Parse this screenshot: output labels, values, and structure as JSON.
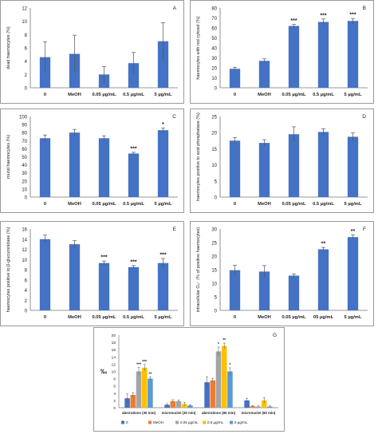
{
  "colors": {
    "bar": "#4472C4",
    "axis": "#777777",
    "frame": "#9a9a9a",
    "text": "#222222"
  },
  "chart_data": [
    {
      "panel": "A",
      "type": "bar",
      "categories": [
        "0",
        "MeOH",
        "0.05 µg/mL",
        "0.5 µg/mL",
        "5 µg/mL"
      ],
      "values": [
        4.6,
        5.1,
        2.0,
        3.7,
        7.0
      ],
      "errors": [
        2.3,
        2.8,
        1.2,
        1.6,
        2.8
      ],
      "sig": [
        "",
        "",
        "",
        "",
        ""
      ],
      "ylabel": "dead haemocytes (%)",
      "ylim": [
        0,
        12
      ],
      "yticks": [
        0,
        2,
        4,
        6,
        8,
        10,
        12
      ]
    },
    {
      "panel": "B",
      "type": "bar",
      "categories": [
        "0",
        "MeOH",
        "0.05 µg/mL",
        "0.5 µg/mL",
        "5 µg/mL"
      ],
      "values": [
        19,
        27,
        62,
        66,
        67
      ],
      "errors": [
        1.5,
        2,
        1.5,
        3,
        2.5
      ],
      "sig": [
        "",
        "",
        "***",
        "***",
        "***"
      ],
      "ylabel": "haemocytes with red cytosol (%)",
      "ylim": [
        0,
        80
      ],
      "yticks": [
        0,
        10,
        20,
        30,
        40,
        50,
        60,
        70,
        80
      ]
    },
    {
      "panel": "C",
      "type": "bar",
      "categories": [
        "0",
        "MeOH",
        "0.05 µg/mL",
        "0.5 µg/mL",
        "5 µg/mL"
      ],
      "values": [
        73,
        80,
        73,
        54,
        83
      ],
      "errors": [
        4,
        4,
        3,
        1.5,
        2.5
      ],
      "sig": [
        "",
        "",
        "",
        "***",
        "*"
      ],
      "ylabel": "round haemocytes (%)",
      "ylim": [
        0,
        100
      ],
      "yticks": [
        0,
        10,
        20,
        30,
        40,
        50,
        60,
        70,
        80,
        90,
        100
      ]
    },
    {
      "panel": "D",
      "type": "bar",
      "categories": [
        "0",
        "MeOH",
        "0.05 µg/mL",
        "0.5 µg/mL",
        "5 µg/mL"
      ],
      "values": [
        17.5,
        16.8,
        19.5,
        20.2,
        18.7
      ],
      "errors": [
        1,
        1,
        2.3,
        1,
        1.2
      ],
      "sig": [
        "",
        "",
        "",
        "",
        ""
      ],
      "ylabel": "haemocytes positive to acid phosphatase (%)",
      "ylim": [
        0,
        25
      ],
      "yticks": [
        0,
        5,
        10,
        15,
        20,
        25
      ]
    },
    {
      "panel": "E",
      "type": "bar",
      "categories": [
        "0",
        "MeOH",
        "0.05 µg/mL",
        "0.5 µg/mL",
        "5 µg/mL"
      ],
      "values": [
        14,
        13,
        9.3,
        8.5,
        9.3
      ],
      "errors": [
        0.8,
        0.7,
        0.4,
        0.3,
        0.9
      ],
      "sig": [
        "",
        "",
        "***",
        "***",
        "***"
      ],
      "ylabel": "haemocytes positive to β-glucuronidase (%)",
      "ylim": [
        0,
        16
      ],
      "yticks": [
        0,
        2,
        4,
        6,
        8,
        10,
        12,
        14,
        16
      ]
    },
    {
      "panel": "F",
      "type": "bar",
      "categories": [
        "0",
        "MeOH",
        "0.05 µg/mL",
        "05 µg/mL",
        "5 µg/mL"
      ],
      "values": [
        14.8,
        14.3,
        12.8,
        22.5,
        27
      ],
      "errors": [
        1.8,
        2.2,
        0.6,
        0.7,
        0.8
      ],
      "sig": [
        "",
        "",
        "",
        "**",
        "**"
      ],
      "ylabel": "intracellular O₂⁻ (% of positive haemocytes)",
      "ylim": [
        0,
        30
      ],
      "yticks": [
        0,
        5,
        10,
        15,
        20,
        25,
        30
      ]
    },
    {
      "panel": "G",
      "type": "bar",
      "categories": [
        "aberrations (30 min)",
        "micronuclei (30 min)",
        "aberrations (60 min)",
        "micronuclei (60 min)"
      ],
      "series": [
        {
          "name": "0",
          "color": "#4472C4",
          "values": [
            2.6,
            0.8,
            7.0,
            2.0
          ],
          "errors": [
            1.2,
            0.3,
            1.5,
            0.6
          ],
          "sig": [
            "",
            "",
            "",
            ""
          ]
        },
        {
          "name": "MeOH",
          "color": "#ED7D31",
          "values": [
            3.5,
            1.8,
            7.5,
            0.4
          ],
          "errors": [
            0.6,
            0.4,
            0.6,
            0.2
          ],
          "sig": [
            "",
            "",
            "",
            ""
          ]
        },
        {
          "name": "0.05 µg/mL",
          "color": "#A5A5A5",
          "values": [
            10.0,
            1.8,
            15.5,
            0.3
          ],
          "errors": [
            1.1,
            0.3,
            1.2,
            0.2
          ],
          "sig": [
            "***",
            "",
            "*",
            ""
          ]
        },
        {
          "name": "0.5 µg/mL",
          "color": "#FFC000",
          "values": [
            11.0,
            1.0,
            17.0,
            2.0
          ],
          "errors": [
            0.9,
            0.5,
            0.8,
            0.8
          ],
          "sig": [
            "***",
            "",
            "**",
            ""
          ]
        },
        {
          "name": "5 µg/mL",
          "color": "#5B9BD5",
          "values": [
            8.0,
            0.6,
            10.0,
            0.3
          ],
          "errors": [
            0.5,
            0.2,
            1.0,
            0.2
          ],
          "sig": [
            "**",
            "",
            "*",
            ""
          ]
        }
      ],
      "ylabel": "‰",
      "ylim": [
        0,
        20
      ],
      "yticks": [
        0,
        2,
        4,
        6,
        8,
        10,
        12,
        14,
        16,
        18,
        20
      ],
      "legend": "bottom"
    }
  ]
}
